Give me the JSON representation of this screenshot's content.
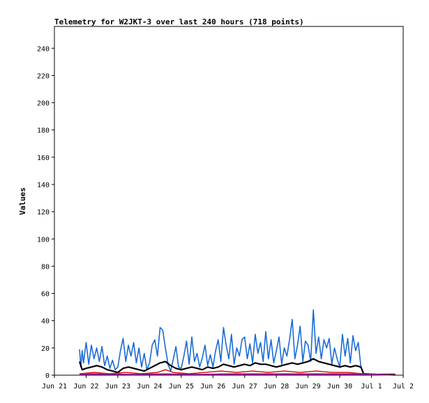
{
  "chart_data": {
    "type": "line",
    "title": "Telemetry for W2JKT-3 over last 240 hours (718 points)",
    "xlabel": "",
    "ylabel": "Values",
    "x_ticks": [
      "Jun 21",
      "Jun 22",
      "Jun 23",
      "Jun 24",
      "Jun 25",
      "Jun 26",
      "Jun 27",
      "Jun 28",
      "Jun 29",
      "Jun 30",
      "Jul 1",
      "Jul 2"
    ],
    "y_ticks": [
      0,
      20,
      40,
      60,
      80,
      100,
      120,
      140,
      160,
      180,
      200,
      220,
      240
    ],
    "ylim": [
      0,
      256
    ],
    "xlim": [
      "Jun 21",
      "Jul 2"
    ],
    "grid": false,
    "legend": "none",
    "series": [
      {
        "color": "#1a6bd6",
        "points": [
          [
            "Jun 21 19:00",
            19
          ],
          [
            "Jun 21 20:00",
            6
          ],
          [
            "Jun 21 21:00",
            18
          ],
          [
            "Jun 21 22:00",
            9
          ],
          [
            "Jun 22 00:00",
            24
          ],
          [
            "Jun 22 02:00",
            8
          ],
          [
            "Jun 22 04:00",
            22
          ],
          [
            "Jun 22 06:00",
            12
          ],
          [
            "Jun 22 08:00",
            20
          ],
          [
            "Jun 22 10:00",
            10
          ],
          [
            "Jun 22 12:00",
            21
          ],
          [
            "Jun 22 14:00",
            7
          ],
          [
            "Jun 22 16:00",
            14
          ],
          [
            "Jun 22 18:00",
            5
          ],
          [
            "Jun 22 20:00",
            11
          ],
          [
            "Jun 22 22:00",
            4
          ],
          [
            "Jun 23 00:00",
            6
          ],
          [
            "Jun 23 02:00",
            18
          ],
          [
            "Jun 23 04:00",
            27
          ],
          [
            "Jun 23 06:00",
            10
          ],
          [
            "Jun 23 08:00",
            22
          ],
          [
            "Jun 23 10:00",
            14
          ],
          [
            "Jun 23 12:00",
            24
          ],
          [
            "Jun 23 14:00",
            9
          ],
          [
            "Jun 23 16:00",
            20
          ],
          [
            "Jun 23 18:00",
            6
          ],
          [
            "Jun 23 20:00",
            16
          ],
          [
            "Jun 23 22:00",
            4
          ],
          [
            "Jun 24 00:00",
            9
          ],
          [
            "Jun 24 02:00",
            22
          ],
          [
            "Jun 24 04:00",
            26
          ],
          [
            "Jun 24 06:00",
            14
          ],
          [
            "Jun 24 08:00",
            35
          ],
          [
            "Jun 24 10:00",
            33
          ],
          [
            "Jun 24 12:00",
            20
          ],
          [
            "Jun 24 14:00",
            8
          ],
          [
            "Jun 24 16:00",
            3
          ],
          [
            "Jun 24 18:00",
            12
          ],
          [
            "Jun 24 20:00",
            21
          ],
          [
            "Jun 24 22:00",
            6
          ],
          [
            "Jun 25 00:00",
            5
          ],
          [
            "Jun 25 02:00",
            14
          ],
          [
            "Jun 25 04:00",
            25
          ],
          [
            "Jun 25 06:00",
            8
          ],
          [
            "Jun 25 08:00",
            28
          ],
          [
            "Jun 25 10:00",
            10
          ],
          [
            "Jun 25 12:00",
            16
          ],
          [
            "Jun 25 14:00",
            6
          ],
          [
            "Jun 25 16:00",
            13
          ],
          [
            "Jun 25 18:00",
            22
          ],
          [
            "Jun 25 20:00",
            7
          ],
          [
            "Jun 25 22:00",
            15
          ],
          [
            "Jun 26 00:00",
            6
          ],
          [
            "Jun 26 02:00",
            18
          ],
          [
            "Jun 26 04:00",
            26
          ],
          [
            "Jun 26 06:00",
            10
          ],
          [
            "Jun 26 08:00",
            35
          ],
          [
            "Jun 26 10:00",
            22
          ],
          [
            "Jun 26 12:00",
            12
          ],
          [
            "Jun 26 14:00",
            30
          ],
          [
            "Jun 26 16:00",
            8
          ],
          [
            "Jun 26 18:00",
            20
          ],
          [
            "Jun 26 20:00",
            14
          ],
          [
            "Jun 26 22:00",
            26
          ],
          [
            "Jun 27 00:00",
            28
          ],
          [
            "Jun 27 02:00",
            12
          ],
          [
            "Jun 27 04:00",
            23
          ],
          [
            "Jun 27 06:00",
            9
          ],
          [
            "Jun 27 08:00",
            30
          ],
          [
            "Jun 27 10:00",
            16
          ],
          [
            "Jun 27 12:00",
            24
          ],
          [
            "Jun 27 14:00",
            10
          ],
          [
            "Jun 27 16:00",
            32
          ],
          [
            "Jun 27 18:00",
            12
          ],
          [
            "Jun 27 20:00",
            26
          ],
          [
            "Jun 27 22:00",
            9
          ],
          [
            "Jun 28 00:00",
            18
          ],
          [
            "Jun 28 02:00",
            28
          ],
          [
            "Jun 28 04:00",
            8
          ],
          [
            "Jun 28 06:00",
            20
          ],
          [
            "Jun 28 08:00",
            14
          ],
          [
            "Jun 28 10:00",
            26
          ],
          [
            "Jun 28 12:00",
            41
          ],
          [
            "Jun 28 14:00",
            12
          ],
          [
            "Jun 28 16:00",
            22
          ],
          [
            "Jun 28 18:00",
            36
          ],
          [
            "Jun 28 20:00",
            10
          ],
          [
            "Jun 28 22:00",
            25
          ],
          [
            "Jun 29 00:00",
            22
          ],
          [
            "Jun 29 02:00",
            10
          ],
          [
            "Jun 29 04:00",
            48
          ],
          [
            "Jun 29 06:00",
            16
          ],
          [
            "Jun 29 08:00",
            28
          ],
          [
            "Jun 29 10:00",
            12
          ],
          [
            "Jun 29 12:00",
            26
          ],
          [
            "Jun 29 14:00",
            20
          ],
          [
            "Jun 29 16:00",
            27
          ],
          [
            "Jun 29 18:00",
            8
          ],
          [
            "Jun 29 20:00",
            20
          ],
          [
            "Jun 29 22:00",
            12
          ],
          [
            "Jun 30 00:00",
            6
          ],
          [
            "Jun 30 02:00",
            30
          ],
          [
            "Jun 30 04:00",
            14
          ],
          [
            "Jun 30 06:00",
            27
          ],
          [
            "Jun 30 08:00",
            9
          ],
          [
            "Jun 30 10:00",
            29
          ],
          [
            "Jun 30 12:00",
            18
          ],
          [
            "Jun 30 14:00",
            24
          ],
          [
            "Jun 30 16:00",
            6
          ],
          [
            "Jun 30 18:00",
            1
          ],
          [
            "Jul 1 04:00",
            0.5
          ],
          [
            "Jul 1 18:00",
            0.5
          ]
        ]
      },
      {
        "color": "#000000",
        "points": [
          [
            "Jun 21 19:00",
            10
          ],
          [
            "Jun 21 21:00",
            4
          ],
          [
            "Jun 22 00:00",
            5
          ],
          [
            "Jun 22 04:00",
            6
          ],
          [
            "Jun 22 08:00",
            7
          ],
          [
            "Jun 22 12:00",
            6
          ],
          [
            "Jun 22 16:00",
            4
          ],
          [
            "Jun 22 20:00",
            3
          ],
          [
            "Jun 23 00:00",
            2
          ],
          [
            "Jun 23 04:00",
            5
          ],
          [
            "Jun 23 08:00",
            6
          ],
          [
            "Jun 23 12:00",
            5
          ],
          [
            "Jun 23 16:00",
            4
          ],
          [
            "Jun 23 20:00",
            3
          ],
          [
            "Jun 24 00:00",
            5
          ],
          [
            "Jun 24 04:00",
            7
          ],
          [
            "Jun 24 08:00",
            9
          ],
          [
            "Jun 24 12:00",
            10
          ],
          [
            "Jun 24 16:00",
            7
          ],
          [
            "Jun 24 20:00",
            5
          ],
          [
            "Jun 25 00:00",
            4
          ],
          [
            "Jun 25 04:00",
            5
          ],
          [
            "Jun 25 08:00",
            6
          ],
          [
            "Jun 25 12:00",
            5
          ],
          [
            "Jun 25 16:00",
            4
          ],
          [
            "Jun 25 20:00",
            6
          ],
          [
            "Jun 26 00:00",
            5
          ],
          [
            "Jun 26 04:00",
            6
          ],
          [
            "Jun 26 08:00",
            8
          ],
          [
            "Jun 26 12:00",
            7
          ],
          [
            "Jun 26 16:00",
            6
          ],
          [
            "Jun 26 20:00",
            7
          ],
          [
            "Jun 27 00:00",
            8
          ],
          [
            "Jun 27 04:00",
            7
          ],
          [
            "Jun 27 08:00",
            9
          ],
          [
            "Jun 27 12:00",
            8
          ],
          [
            "Jun 27 16:00",
            8
          ],
          [
            "Jun 27 20:00",
            7
          ],
          [
            "Jun 28 00:00",
            6
          ],
          [
            "Jun 28 04:00",
            7
          ],
          [
            "Jun 28 08:00",
            8
          ],
          [
            "Jun 28 12:00",
            9
          ],
          [
            "Jun 28 16:00",
            8
          ],
          [
            "Jun 28 20:00",
            9
          ],
          [
            "Jun 29 00:00",
            10
          ],
          [
            "Jun 29 04:00",
            12
          ],
          [
            "Jun 29 08:00",
            10
          ],
          [
            "Jun 29 12:00",
            9
          ],
          [
            "Jun 29 16:00",
            8
          ],
          [
            "Jun 29 20:00",
            7
          ],
          [
            "Jun 30 00:00",
            6
          ],
          [
            "Jun 30 04:00",
            7
          ],
          [
            "Jun 30 08:00",
            6
          ],
          [
            "Jun 30 12:00",
            7
          ],
          [
            "Jun 30 16:00",
            6
          ],
          [
            "Jun 30 18:00",
            1
          ],
          [
            "Jul 1 04:00",
            0.5
          ],
          [
            "Jul 1 18:00",
            0.5
          ]
        ]
      },
      {
        "color": "#dd0000",
        "points": [
          [
            "Jun 21 19:00",
            1
          ],
          [
            "Jun 22 06:00",
            2
          ],
          [
            "Jun 22 18:00",
            1
          ],
          [
            "Jun 23 06:00",
            2
          ],
          [
            "Jun 23 18:00",
            1
          ],
          [
            "Jun 24 06:00",
            2
          ],
          [
            "Jun 24 12:00",
            4
          ],
          [
            "Jun 24 18:00",
            2
          ],
          [
            "Jun 25 06:00",
            1
          ],
          [
            "Jun 25 18:00",
            2
          ],
          [
            "Jun 26 06:00",
            3
          ],
          [
            "Jun 26 18:00",
            2
          ],
          [
            "Jun 27 06:00",
            3
          ],
          [
            "Jun 27 18:00",
            2
          ],
          [
            "Jun 28 06:00",
            3
          ],
          [
            "Jun 28 18:00",
            2
          ],
          [
            "Jun 29 06:00",
            3
          ],
          [
            "Jun 29 18:00",
            2
          ],
          [
            "Jun 30 06:00",
            2
          ],
          [
            "Jun 30 18:00",
            1
          ],
          [
            "Jul 1 18:00",
            0
          ]
        ]
      },
      {
        "color": "#00aa00",
        "points": [
          [
            "Jun 21 19:00",
            1
          ],
          [
            "Jun 22 12:00",
            1
          ],
          [
            "Jun 23 12:00",
            0.5
          ],
          [
            "Jun 24 12:00",
            1
          ],
          [
            "Jun 25 12:00",
            0.5
          ],
          [
            "Jun 26 12:00",
            1
          ],
          [
            "Jun 27 12:00",
            1
          ],
          [
            "Jun 28 12:00",
            1
          ],
          [
            "Jun 29 12:00",
            1
          ],
          [
            "Jun 30 12:00",
            1
          ],
          [
            "Jul 1 18:00",
            0
          ]
        ]
      },
      {
        "color": "#aa00aa",
        "points": [
          [
            "Jun 21 19:00",
            0.5
          ],
          [
            "Jun 23 00:00",
            0.5
          ],
          [
            "Jun 25 00:00",
            0.5
          ],
          [
            "Jun 27 00:00",
            0.5
          ],
          [
            "Jun 29 00:00",
            0.5
          ],
          [
            "Jun 30 18:00",
            0.5
          ],
          [
            "Jul 1 18:00",
            0
          ]
        ]
      }
    ]
  }
}
